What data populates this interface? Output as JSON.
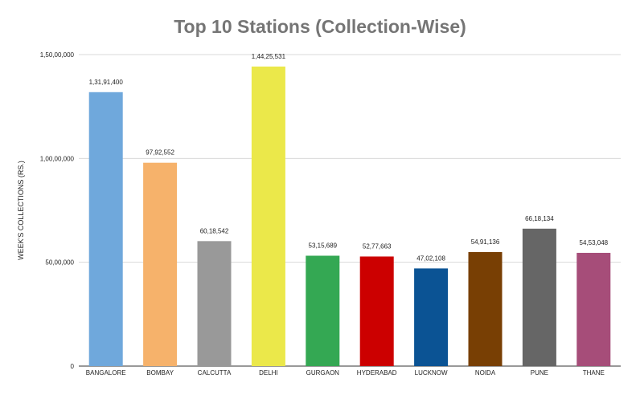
{
  "chart_data": {
    "type": "bar",
    "title": "Top 10 Stations (Collection-Wise)",
    "ylabel": "WEEK'S COLLECTIONS (RS.)",
    "xlabel": "",
    "ylim": [
      0,
      15000000
    ],
    "yticks": [
      0,
      5000000,
      10000000,
      15000000
    ],
    "ytick_labels": [
      "0",
      "50,00,000",
      "1,00,00,000",
      "1,50,00,000"
    ],
    "grid": true,
    "legend": "none",
    "categories": [
      "BANGALORE",
      "BOMBAY",
      "CALCUTTA",
      "DELHI",
      "GURGAON",
      "HYDERABAD",
      "LUCKNOW",
      "NOIDA",
      "PUNE",
      "THANE"
    ],
    "values": [
      13191400,
      9792552,
      6018542,
      14425531,
      5315689,
      5277663,
      4702108,
      5491136,
      6618134,
      5453048
    ],
    "value_labels": [
      "1,31,91,400",
      "97,92,552",
      "60,18,542",
      "1,44,25,531",
      "53,15,689",
      "52,77,663",
      "47,02,108",
      "54,91,136",
      "66,18,134",
      "54,53,048"
    ],
    "colors": [
      "#6fa8dc",
      "#f6b26b",
      "#999999",
      "#ebe84a",
      "#34a853",
      "#cc0000",
      "#0b5394",
      "#783f04",
      "#666666",
      "#a64d79"
    ]
  }
}
